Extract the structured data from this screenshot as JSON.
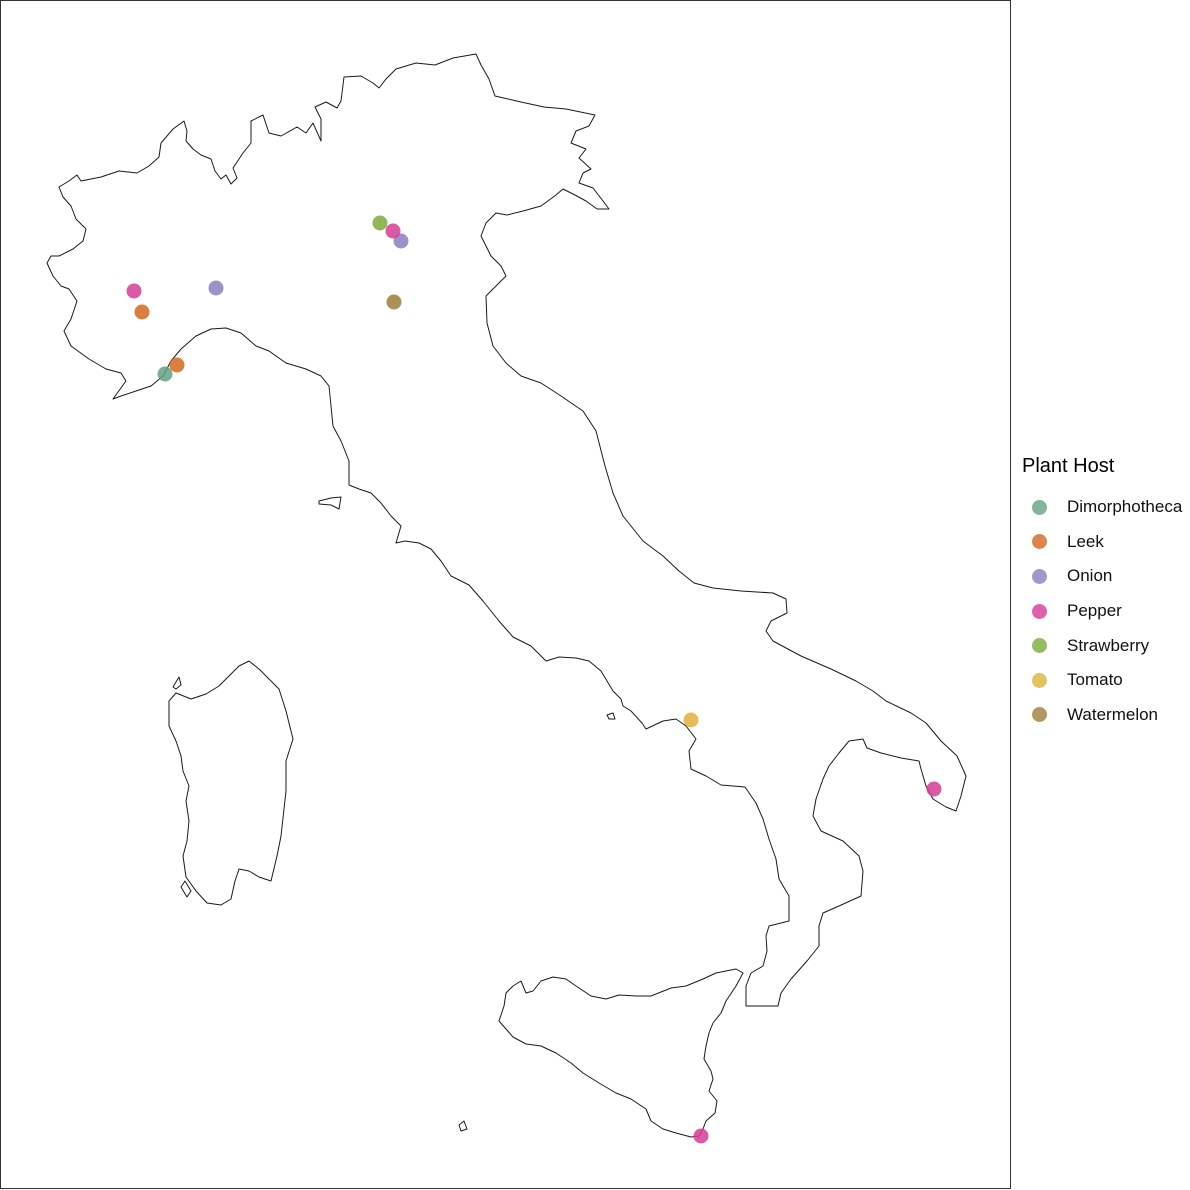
{
  "legend": {
    "title": "Plant Host",
    "items": [
      {
        "label": "Dimorphotheca",
        "color": "#66a182"
      },
      {
        "label": "Leek",
        "color": "#d2691e"
      },
      {
        "label": "Onion",
        "color": "#8a7fc0"
      },
      {
        "label": "Pepper",
        "color": "#d63c96"
      },
      {
        "label": "Strawberry",
        "color": "#7cab3a"
      },
      {
        "label": "Tomato",
        "color": "#e0b13a"
      },
      {
        "label": "Watermelon",
        "color": "#a07d3a"
      }
    ]
  },
  "points": [
    {
      "host": "Dimorphotheca"
    },
    {
      "host": "Leek"
    },
    {
      "host": "Leek"
    },
    {
      "host": "Onion"
    },
    {
      "host": "Onion"
    },
    {
      "host": "Pepper"
    },
    {
      "host": "Pepper"
    },
    {
      "host": "Pepper"
    },
    {
      "host": "Pepper"
    },
    {
      "host": "Strawberry"
    },
    {
      "host": "Tomato"
    },
    {
      "host": "Watermelon"
    }
  ]
}
